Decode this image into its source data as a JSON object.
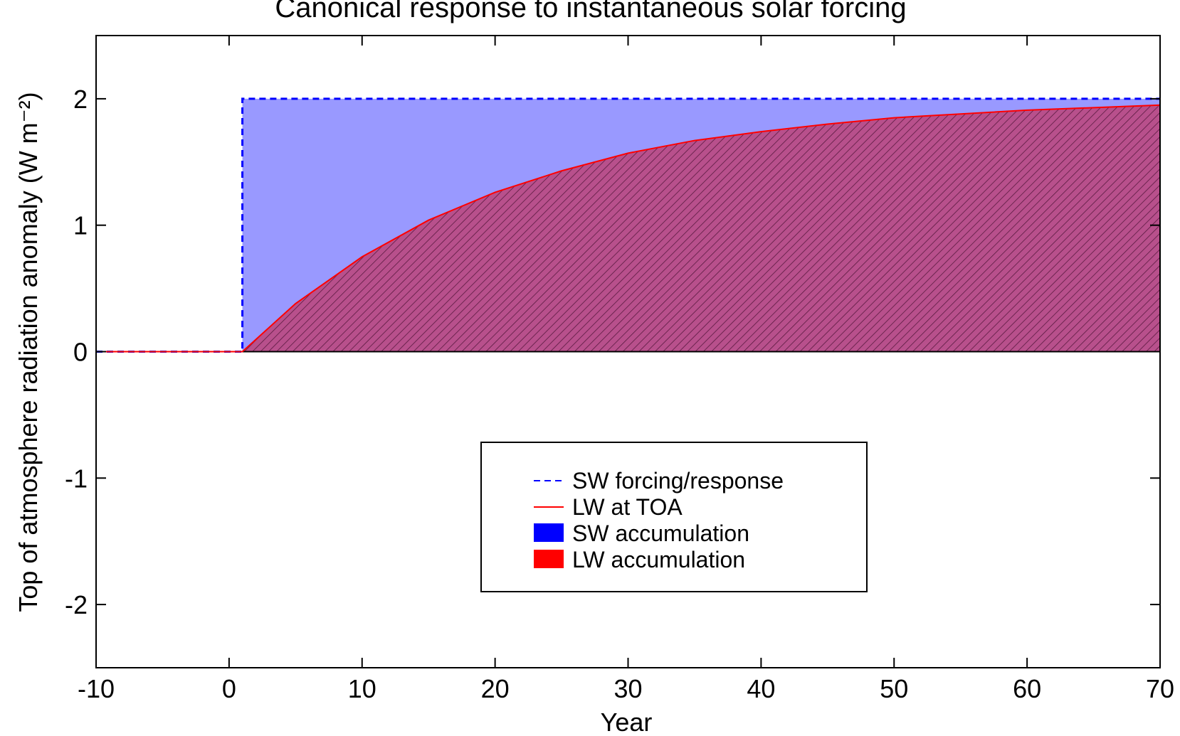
{
  "chart_data": {
    "type": "line",
    "title": "Canonical response to instantaneous solar forcing",
    "xlabel": "Year",
    "ylabel": "Top of atmosphere radiation anomaly (W m⁻²)",
    "xlim": [
      -10,
      70
    ],
    "xticks": [
      -10,
      0,
      10,
      20,
      30,
      40,
      50,
      60,
      70
    ],
    "ylim": [
      -2.5,
      2.5
    ],
    "yticks": [
      -2,
      -1,
      0,
      1,
      2
    ],
    "legend": "center",
    "series": [
      {
        "name": "SW forcing/response",
        "kind": "line",
        "dash": true,
        "color": "#0000ff",
        "x": [
          -10,
          1,
          1,
          70
        ],
        "values": [
          0,
          0,
          2,
          2
        ]
      },
      {
        "name": "LW at TOA",
        "kind": "line",
        "color": "#ff0000",
        "x": [
          -10,
          1,
          5,
          10,
          15,
          20,
          25,
          30,
          35,
          40,
          45,
          50,
          55,
          60,
          65,
          70
        ],
        "values": [
          0,
          0,
          0.38,
          0.75,
          1.04,
          1.26,
          1.43,
          1.57,
          1.67,
          1.74,
          1.8,
          1.85,
          1.88,
          1.91,
          1.93,
          1.95
        ]
      },
      {
        "name": "SW accumulation",
        "kind": "area",
        "color": "#0000ff",
        "fill": "#9999ff",
        "x": [
          -10,
          1,
          1,
          70
        ],
        "values": [
          0,
          0,
          2,
          2
        ]
      },
      {
        "name": "LW accumulation",
        "kind": "area",
        "hatch": true,
        "color": "#ff0000",
        "fill": "#b8508c",
        "x": [
          -10,
          1,
          5,
          10,
          15,
          20,
          25,
          30,
          35,
          40,
          45,
          50,
          55,
          60,
          65,
          70
        ],
        "values": [
          0,
          0,
          0.38,
          0.75,
          1.04,
          1.26,
          1.43,
          1.57,
          1.67,
          1.74,
          1.8,
          1.85,
          1.88,
          1.91,
          1.93,
          1.95
        ]
      }
    ]
  }
}
